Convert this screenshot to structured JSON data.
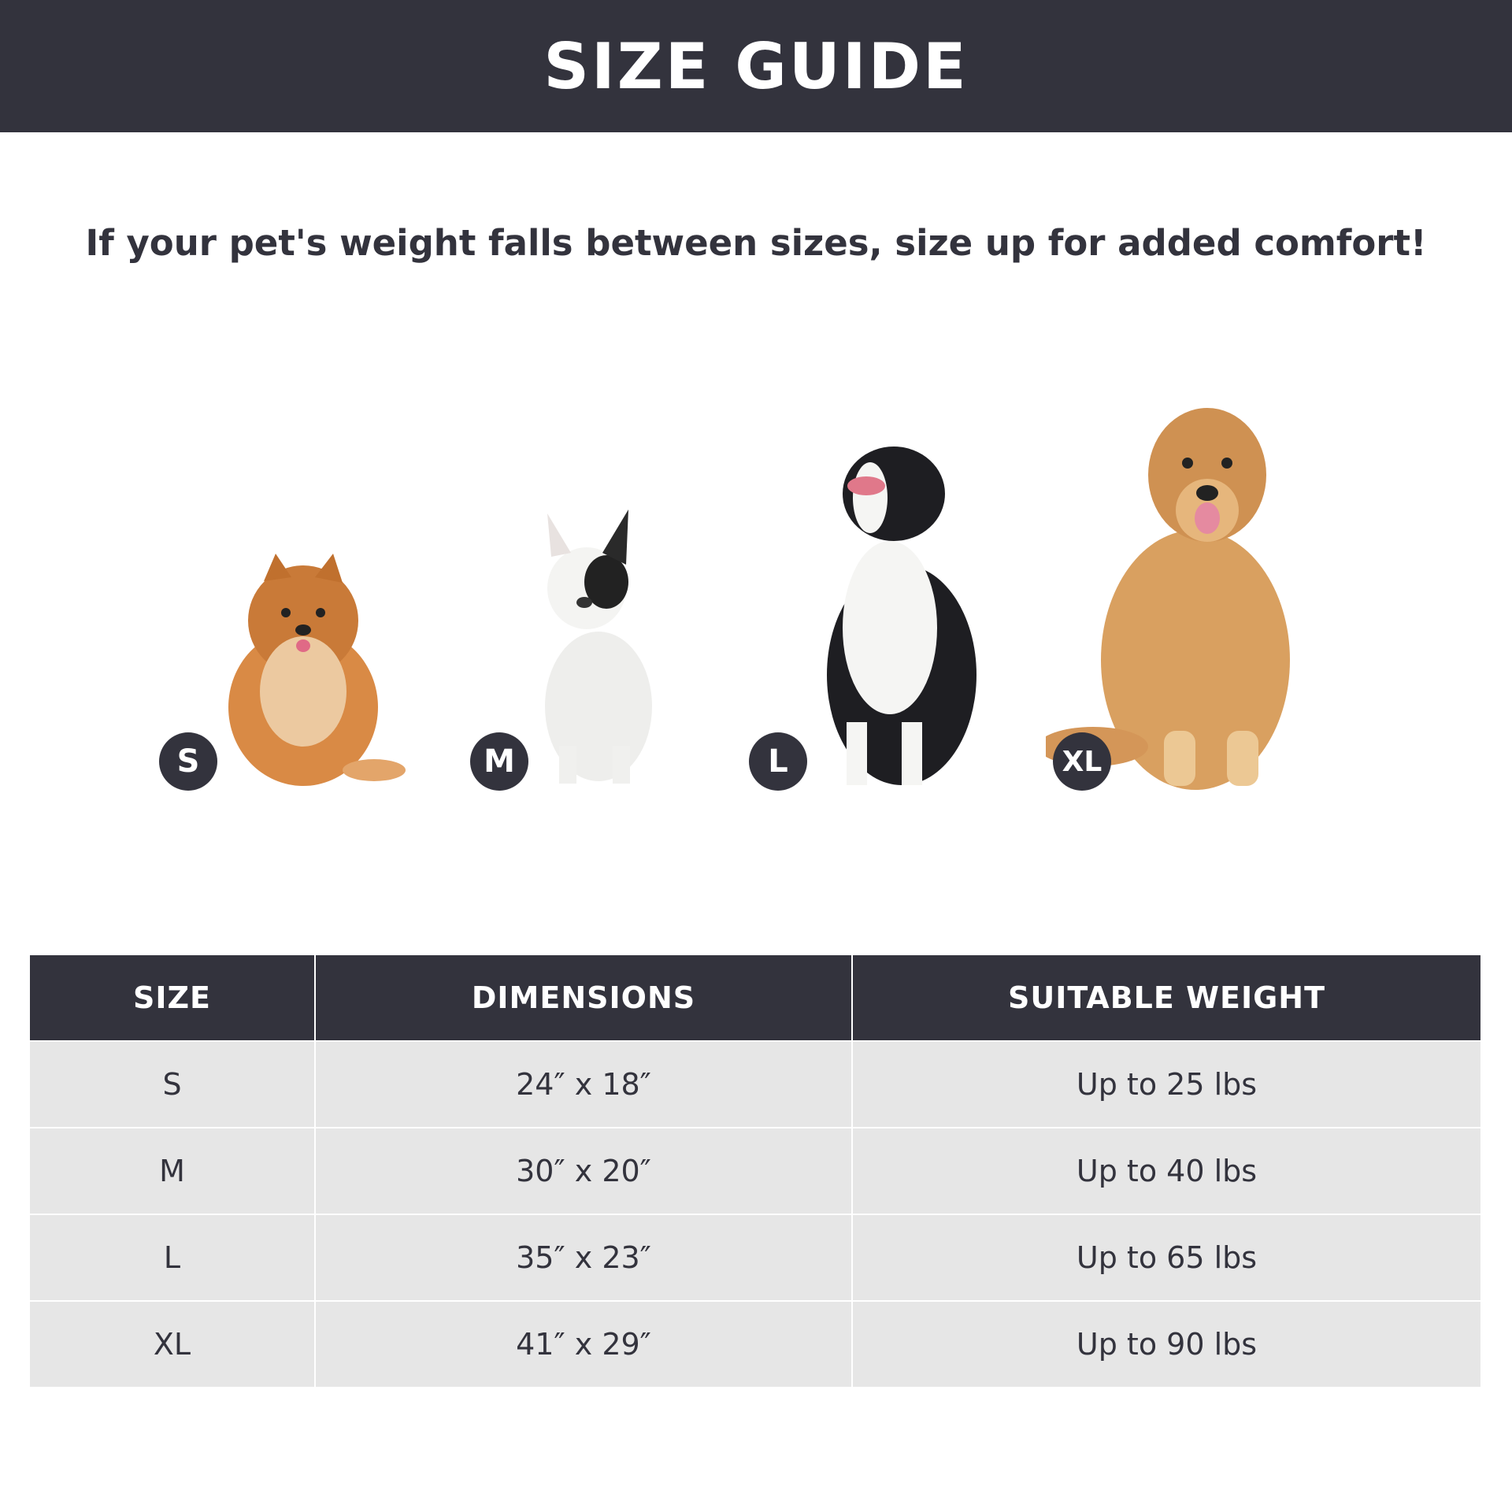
{
  "header": {
    "title": "SIZE GUIDE"
  },
  "subtitle": "If your pet's weight falls between sizes, size up for added comfort!",
  "dogs": [
    {
      "size": "S",
      "icon": "pomeranian-image",
      "color": "#d98a45"
    },
    {
      "size": "M",
      "icon": "french-bulldog-image",
      "color": "#f1f0ee"
    },
    {
      "size": "L",
      "icon": "border-collie-image",
      "color": "#1e1e22"
    },
    {
      "size": "XL",
      "icon": "golden-retriever-image",
      "color": "#d9a060"
    }
  ],
  "table": {
    "headers": [
      "SIZE",
      "DIMENSIONS",
      "SUITABLE WEIGHT"
    ],
    "rows": [
      [
        "S",
        "24″ x 18″",
        "Up to 25 lbs"
      ],
      [
        "M",
        "30″ x 20″",
        "Up to 40 lbs"
      ],
      [
        "L",
        "35″ x 23″",
        "Up to 65 lbs"
      ],
      [
        "XL",
        "41″ x 29″",
        "Up to 90 lbs"
      ]
    ]
  },
  "colors": {
    "dark": "#33333d",
    "row": "#e6e6e6"
  }
}
